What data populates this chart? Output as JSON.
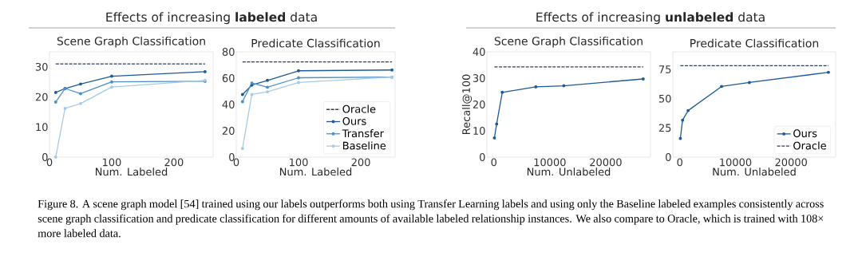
{
  "chart_data": [
    {
      "type": "line",
      "title": "Scene Graph Classification",
      "xlabel": "Num. Labeled",
      "xlim": [
        0,
        263
      ],
      "ylim": [
        0,
        35
      ],
      "xticks": [
        0,
        100,
        200
      ],
      "yticks": [
        0,
        10,
        20,
        30
      ],
      "grid": false,
      "legend": false,
      "annotations": [
        "Effects of increasing **labeled** data",
        "Figure 8. A scene graph model [54] trained using our labels outperforms both using Transfer Learning labels and using only the Baseline labeled examples consistently across scene graph classification and predicate classification for different amounts of available labeled relationship instances. We also compare to Oracle, which is trained with 108× more labeled data."
      ],
      "series": [
        {
          "color": "#2e3d5c",
          "x": [
            10,
            250
          ],
          "values": [
            31,
            31
          ],
          "line_style": "dashed",
          "marker": "none"
        },
        {
          "color": "#1f5a96",
          "x": [
            10,
            25,
            50,
            100,
            250
          ],
          "values": [
            21.5,
            22.8,
            24.3,
            26.9,
            28.4
          ],
          "line_style": "solid",
          "marker": "circle"
        },
        {
          "color": "#4d8fc4",
          "x": [
            10,
            25,
            50,
            100,
            250
          ],
          "values": [
            18.3,
            22.8,
            21.1,
            25.0,
            25.2
          ],
          "line_style": "solid",
          "marker": "circle"
        },
        {
          "color": "#a9cae3",
          "x": [
            10,
            25,
            50,
            100,
            250
          ],
          "values": [
            0,
            16.2,
            17.8,
            23.3,
            25.5
          ],
          "line_style": "solid",
          "marker": "circle"
        }
      ]
    },
    {
      "type": "line",
      "title": "Predicate Classification",
      "xlabel": "Num. Labeled",
      "xlim": [
        0,
        255
      ],
      "ylim": [
        0,
        80
      ],
      "xticks": [
        0,
        100,
        200
      ],
      "yticks": [
        0,
        20,
        40,
        60,
        80
      ],
      "grid": false,
      "legend": "bottom right",
      "series": [
        {
          "name": "Oracle",
          "color": "#2e3d5c",
          "x": [
            10,
            250
          ],
          "values": [
            72.3,
            72.3
          ],
          "line_style": "dashed",
          "marker": "none"
        },
        {
          "name": "Ours",
          "color": "#1f5a96",
          "x": [
            10,
            25,
            50,
            100,
            250
          ],
          "values": [
            47.6,
            54.7,
            58.3,
            65.6,
            66.2
          ],
          "line_style": "solid",
          "marker": "circle"
        },
        {
          "name": "Transfer",
          "color": "#4d8fc4",
          "x": [
            10,
            25,
            50,
            100,
            250
          ],
          "values": [
            42.1,
            56.3,
            53.1,
            60.3,
            60.8
          ],
          "line_style": "solid",
          "marker": "circle"
        },
        {
          "name": "Baseline",
          "color": "#a9cae3",
          "x": [
            10,
            25,
            50,
            100,
            250
          ],
          "values": [
            6.5,
            47.6,
            49.6,
            56.7,
            60.8
          ],
          "line_style": "solid",
          "marker": "circle"
        }
      ]
    },
    {
      "type": "line",
      "title": "Scene Graph Classification",
      "xlabel": "Num. Unlabeled",
      "ylabel": "Recall@100",
      "xlim": [
        -1250,
        28000
      ],
      "ylim": [
        0,
        40
      ],
      "xticks": [
        0,
        10000,
        20000
      ],
      "yticks": [
        0,
        10,
        20,
        30,
        40
      ],
      "grid": false,
      "legend": false,
      "annotations": [
        "Effects of increasing **unlabeled** data"
      ],
      "series": [
        {
          "color": "#1f5a96",
          "x": [
            100,
            500,
            1500,
            7500,
            12500,
            26700
          ],
          "values": [
            7.3,
            12.6,
            24.6,
            26.7,
            27.1,
            29.7
          ],
          "line_style": "solid",
          "marker": "circle"
        },
        {
          "color": "#2e3d5c",
          "x": [
            100,
            26700
          ],
          "values": [
            34.3,
            34.3
          ],
          "line_style": "dashed",
          "marker": "none"
        }
      ]
    },
    {
      "type": "line",
      "title": "Predicate Classification",
      "xlabel": "Num. Unlabeled",
      "xlim": [
        -1250,
        28000
      ],
      "ylim": [
        0,
        90
      ],
      "xticks": [
        0,
        10000,
        20000
      ],
      "yticks": [
        0,
        25,
        50,
        75
      ],
      "grid": false,
      "legend": "bottom right",
      "series": [
        {
          "name": "Ours",
          "color": "#1f5a96",
          "x": [
            100,
            500,
            1500,
            7500,
            12500,
            26700
          ],
          "values": [
            15.9,
            31.6,
            39.8,
            60.4,
            63.8,
            72.5
          ],
          "line_style": "solid",
          "marker": "circle"
        },
        {
          "name": "Oracle",
          "color": "#2e3d5c",
          "x": [
            100,
            26700
          ],
          "values": [
            78.1,
            78.1
          ],
          "line_style": "dashed",
          "marker": "none"
        }
      ]
    }
  ]
}
